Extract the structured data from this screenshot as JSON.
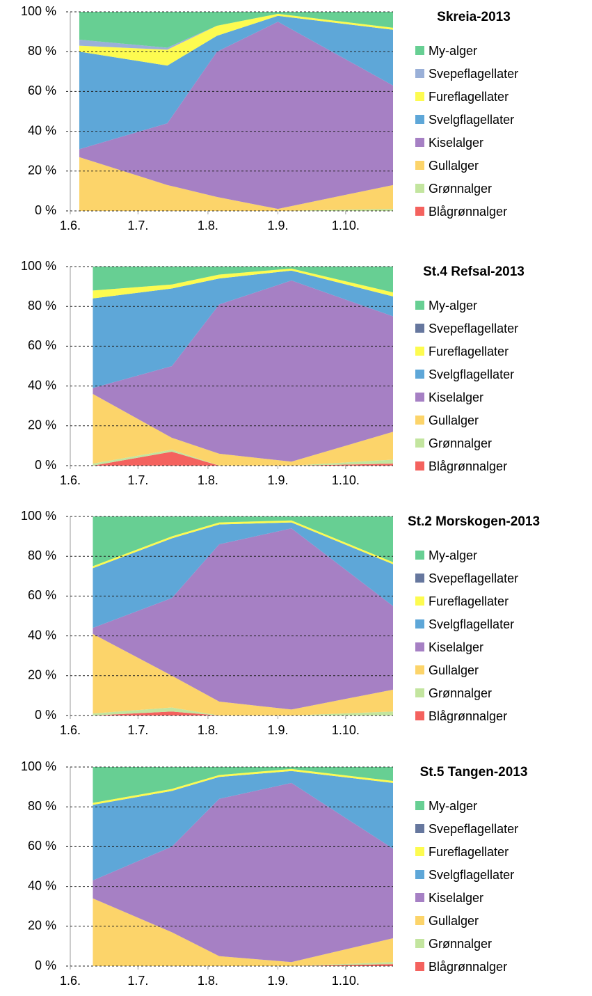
{
  "chart_data": [
    {
      "type": "stacked-area",
      "title": "Skreia-2013",
      "x": [
        156,
        195,
        217,
        244,
        295
      ],
      "xlim": [
        152,
        295
      ],
      "xticks": [
        {
          "value": 152,
          "label": "1.6."
        },
        {
          "value": 182,
          "label": "1.7."
        },
        {
          "value": 213,
          "label": "1.8."
        },
        {
          "value": 244,
          "label": "1.9."
        },
        {
          "value": 274,
          "label": "1.10."
        }
      ],
      "ylim": [
        0,
        100
      ],
      "yticks": [
        {
          "value": 0,
          "label": "0 %"
        },
        {
          "value": 20,
          "label": "20 %"
        },
        {
          "value": 40,
          "label": "40 %"
        },
        {
          "value": 60,
          "label": "60 %"
        },
        {
          "value": 80,
          "label": "80 %"
        },
        {
          "value": 100,
          "label": "100 %"
        }
      ],
      "grid": true,
      "series": [
        {
          "name": "Blågrønnalger",
          "color": "#f4625e",
          "values": [
            0,
            0,
            0,
            0,
            0
          ]
        },
        {
          "name": "Grønnalger",
          "color": "#c3e59f",
          "values": [
            0,
            0,
            0,
            0,
            1
          ]
        },
        {
          "name": "Gullalger",
          "color": "#fcd46a",
          "values": [
            27,
            13,
            7,
            1,
            12
          ]
        },
        {
          "name": "Kiselalger",
          "color": "#a680c4",
          "values": [
            4,
            31,
            73,
            94,
            50
          ]
        },
        {
          "name": "Svelgflagellater",
          "color": "#5ea7d8",
          "values": [
            49,
            29,
            8,
            3,
            28
          ]
        },
        {
          "name": "Fureflagellater",
          "color": "#fdfb50",
          "values": [
            3,
            8,
            5,
            1,
            1
          ]
        },
        {
          "name": "Svepeflagellater",
          "color": "#9ab0d8",
          "values": [
            3,
            1,
            0,
            0,
            0
          ]
        },
        {
          "name": "My-alger",
          "color": "#67cf93",
          "values": [
            14,
            18,
            7,
            1,
            8
          ]
        }
      ]
    },
    {
      "type": "stacked-area",
      "title": "St.4 Refsal-2013",
      "x": [
        162,
        197,
        218,
        250,
        295
      ],
      "xlim": [
        152,
        295
      ],
      "xticks": [
        {
          "value": 152,
          "label": "1.6."
        },
        {
          "value": 182,
          "label": "1.7."
        },
        {
          "value": 213,
          "label": "1.8."
        },
        {
          "value": 244,
          "label": "1.9."
        },
        {
          "value": 274,
          "label": "1.10."
        }
      ],
      "ylim": [
        0,
        100
      ],
      "yticks": [
        {
          "value": 0,
          "label": "0 %"
        },
        {
          "value": 20,
          "label": "20 %"
        },
        {
          "value": 40,
          "label": "40 %"
        },
        {
          "value": 60,
          "label": "60 %"
        },
        {
          "value": 80,
          "label": "80 %"
        },
        {
          "value": 100,
          "label": "100 %"
        }
      ],
      "grid": true,
      "series": [
        {
          "name": "Blågrønnalger",
          "color": "#f4625e",
          "values": [
            0,
            7,
            0,
            0,
            1
          ]
        },
        {
          "name": "Grønnalger",
          "color": "#c3e59f",
          "values": [
            1,
            1,
            0,
            0,
            2
          ]
        },
        {
          "name": "Gullalger",
          "color": "#fcd46a",
          "values": [
            35,
            6,
            6,
            2,
            14
          ]
        },
        {
          "name": "Kiselalger",
          "color": "#a680c4",
          "values": [
            3,
            36,
            75,
            91,
            58
          ]
        },
        {
          "name": "Svelgflagellater",
          "color": "#5ea7d8",
          "values": [
            45,
            39,
            13,
            5,
            10
          ]
        },
        {
          "name": "Fureflagellater",
          "color": "#fdfb50",
          "values": [
            4,
            2,
            2,
            1,
            2
          ]
        },
        {
          "name": "Svepeflagellater",
          "color": "#66779e",
          "values": [
            0,
            0,
            0,
            0,
            0
          ]
        },
        {
          "name": "My-alger",
          "color": "#67cf93",
          "values": [
            12,
            9,
            4,
            1,
            13
          ]
        }
      ]
    },
    {
      "type": "stacked-area",
      "title": "St.2 Morskogen-2013",
      "x": [
        162,
        197,
        218,
        250,
        295
      ],
      "xlim": [
        152,
        295
      ],
      "xticks": [
        {
          "value": 152,
          "label": "1.6."
        },
        {
          "value": 182,
          "label": "1.7."
        },
        {
          "value": 213,
          "label": "1.8."
        },
        {
          "value": 244,
          "label": "1.9."
        },
        {
          "value": 274,
          "label": "1.10."
        }
      ],
      "ylim": [
        0,
        100
      ],
      "yticks": [
        {
          "value": 0,
          "label": "0 %"
        },
        {
          "value": 20,
          "label": "20 %"
        },
        {
          "value": 40,
          "label": "40 %"
        },
        {
          "value": 60,
          "label": "60 %"
        },
        {
          "value": 80,
          "label": "80 %"
        },
        {
          "value": 100,
          "label": "100 %"
        }
      ],
      "grid": true,
      "series": [
        {
          "name": "Blågrønnalger",
          "color": "#f4625e",
          "values": [
            0,
            2,
            0,
            0,
            0
          ]
        },
        {
          "name": "Grønnalger",
          "color": "#c3e59f",
          "values": [
            1,
            2,
            0,
            0,
            2
          ]
        },
        {
          "name": "Gullalger",
          "color": "#fcd46a",
          "values": [
            40,
            16,
            7,
            3,
            11
          ]
        },
        {
          "name": "Kiselalger",
          "color": "#a680c4",
          "values": [
            3,
            39,
            79,
            91,
            42
          ]
        },
        {
          "name": "Svelgflagellater",
          "color": "#5ea7d8",
          "values": [
            30,
            30,
            10,
            3,
            21
          ]
        },
        {
          "name": "Fureflagellater",
          "color": "#fdfb50",
          "values": [
            1,
            1,
            1,
            1,
            1
          ]
        },
        {
          "name": "Svepeflagellater",
          "color": "#66779e",
          "values": [
            0,
            0,
            0,
            0,
            0
          ]
        },
        {
          "name": "My-alger",
          "color": "#67cf93",
          "values": [
            25,
            10,
            3,
            2,
            23
          ]
        }
      ]
    },
    {
      "type": "stacked-area",
      "title": "St.5 Tangen-2013",
      "x": [
        162,
        197,
        218,
        250,
        295
      ],
      "xlim": [
        152,
        295
      ],
      "xticks": [
        {
          "value": 152,
          "label": "1.6."
        },
        {
          "value": 182,
          "label": "1.7."
        },
        {
          "value": 213,
          "label": "1.8."
        },
        {
          "value": 244,
          "label": "1.9."
        },
        {
          "value": 274,
          "label": "1.10."
        }
      ],
      "ylim": [
        0,
        100
      ],
      "yticks": [
        {
          "value": 0,
          "label": "0 %"
        },
        {
          "value": 20,
          "label": "20 %"
        },
        {
          "value": 40,
          "label": "40 %"
        },
        {
          "value": 60,
          "label": "60 %"
        },
        {
          "value": 80,
          "label": "80 %"
        },
        {
          "value": 100,
          "label": "100 %"
        }
      ],
      "grid": true,
      "series": [
        {
          "name": "Blågrønnalger",
          "color": "#f4625e",
          "values": [
            0,
            0,
            0,
            0,
            1
          ]
        },
        {
          "name": "Grønnalger",
          "color": "#c3e59f",
          "values": [
            0,
            0,
            0,
            0,
            1
          ]
        },
        {
          "name": "Gullalger",
          "color": "#fcd46a",
          "values": [
            34,
            17,
            5,
            2,
            12
          ]
        },
        {
          "name": "Kiselalger",
          "color": "#a680c4",
          "values": [
            9,
            43,
            79,
            90,
            45
          ]
        },
        {
          "name": "Svelgflagellater",
          "color": "#5ea7d8",
          "values": [
            38,
            28,
            11,
            6,
            33
          ]
        },
        {
          "name": "Fureflagellater",
          "color": "#fdfb50",
          "values": [
            1,
            1,
            1,
            1,
            1
          ]
        },
        {
          "name": "Svepeflagellater",
          "color": "#66779e",
          "values": [
            0,
            0,
            0,
            0,
            0
          ]
        },
        {
          "name": "My-alger",
          "color": "#67cf93",
          "values": [
            18,
            11,
            4,
            1,
            7
          ]
        }
      ]
    }
  ]
}
